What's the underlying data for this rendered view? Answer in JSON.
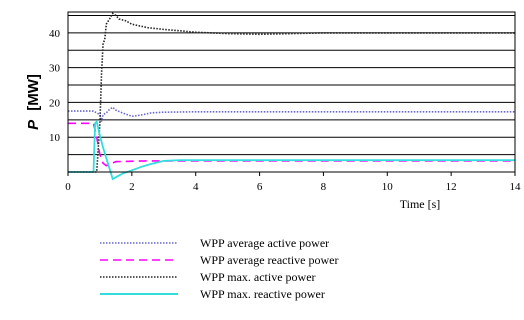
{
  "chart_data": {
    "type": "line",
    "title": "",
    "xlabel": "Time [s]",
    "ylabel_symbol": "P",
    "ylabel_unit": "[MW]",
    "xlim": [
      0,
      14
    ],
    "ylim": [
      0,
      46
    ],
    "x_ticks": [
      0,
      2,
      4,
      6,
      8,
      10,
      12,
      14
    ],
    "y_ticks": [
      10,
      20,
      30,
      40
    ],
    "grid": "horizontal",
    "legend_position": "bottom",
    "series": [
      {
        "name": "WPP average active power",
        "color": "#6666cc",
        "style": "dotted",
        "x": [
          0,
          0.8,
          0.9,
          1.0,
          1.05,
          1.1,
          1.2,
          1.3,
          1.4,
          1.5,
          1.7,
          2.0,
          2.3,
          2.6,
          3.0,
          4.0,
          6.0,
          8.0,
          10.0,
          12.0,
          14.0
        ],
        "y": [
          17.5,
          17.5,
          17.0,
          16.5,
          14.5,
          16.5,
          17.0,
          18.0,
          18.6,
          17.8,
          17.0,
          16.0,
          16.4,
          17.0,
          17.2,
          17.3,
          17.3,
          17.3,
          17.3,
          17.3,
          17.3
        ]
      },
      {
        "name": "WPP average reactive power",
        "color": "#ff00ff",
        "style": "dashed",
        "x": [
          0,
          0.8,
          0.9,
          1.0,
          1.1,
          1.2,
          1.3,
          1.5,
          1.7,
          2.0,
          2.5,
          3.0,
          4.0,
          14.0
        ],
        "y": [
          14.0,
          14.0,
          10.0,
          5.0,
          2.5,
          1.8,
          2.2,
          3.0,
          3.0,
          3.1,
          3.2,
          3.2,
          3.2,
          3.2
        ]
      },
      {
        "name": "WPP max. active power",
        "color": "#222222",
        "style": "dotted",
        "x": [
          0,
          0.9,
          1.0,
          1.05,
          1.1,
          1.15,
          1.2,
          1.3,
          1.4,
          1.5,
          1.6,
          1.8,
          2.0,
          2.5,
          3.0,
          3.5,
          4.0,
          5.0,
          6.0,
          7.0,
          8.0,
          10.0,
          12.0,
          14.0
        ],
        "y": [
          0,
          0,
          14.0,
          28.0,
          37.0,
          38.0,
          42.5,
          44.0,
          45.6,
          45.0,
          44.0,
          43.5,
          42.5,
          41.5,
          41.0,
          40.6,
          40.2,
          39.8,
          39.6,
          39.8,
          40.0,
          40.0,
          40.0,
          40.0
        ]
      },
      {
        "name": "WPP max. reactive power",
        "color": "#33dddd",
        "style": "solid",
        "x": [
          0,
          0.8,
          0.85,
          0.9,
          1.0,
          1.1,
          1.2,
          1.3,
          1.4,
          1.5,
          1.7,
          2.0,
          2.3,
          2.6,
          3.0,
          3.5,
          4.0,
          5.0,
          14.0
        ],
        "y": [
          0,
          0,
          14.0,
          14.5,
          10.5,
          7.0,
          4.0,
          1.0,
          -2.0,
          -1.5,
          -0.5,
          0.5,
          1.5,
          2.3,
          3.2,
          3.4,
          3.4,
          3.4,
          3.4
        ]
      }
    ]
  }
}
